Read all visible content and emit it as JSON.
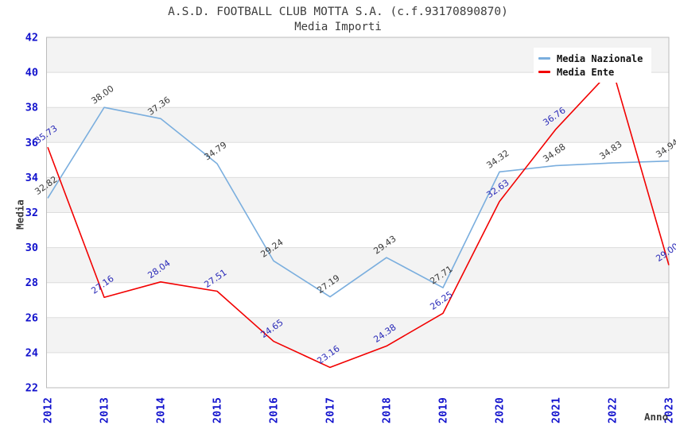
{
  "chart_data": {
    "type": "line",
    "title": "A.S.D. FOOTBALL CLUB MOTTA S.A. (c.f.93170890870)",
    "subtitle": "Media Importi",
    "xlabel": "Anno",
    "ylabel": "Media",
    "x": [
      "2012",
      "2013",
      "2014",
      "2015",
      "2016",
      "2017",
      "2018",
      "2019",
      "2020",
      "2021",
      "2022",
      "2023"
    ],
    "ylim": [
      22,
      42
    ],
    "yticks": [
      22,
      24,
      26,
      28,
      30,
      32,
      34,
      36,
      38,
      40,
      42
    ],
    "grid": true,
    "plot_bands_alternating": true,
    "legend_position": "top-right",
    "series": [
      {
        "name": "Media Nazionale",
        "color": "#7aaede",
        "label_color": "#3a3a3a",
        "values": [
          32.82,
          38.0,
          37.36,
          34.79,
          29.24,
          27.19,
          29.43,
          27.71,
          34.32,
          34.68,
          34.83,
          34.94
        ],
        "labels": [
          "32.82",
          "38.00",
          "37.36",
          "34.79",
          "29.24",
          "27.19",
          "29.43",
          "27.71",
          "34.32",
          "34.68",
          "34.83",
          "34.94"
        ]
      },
      {
        "name": "Media Ente",
        "color": "#f20000",
        "label_color": "#2a2ab8",
        "values": [
          35.73,
          27.16,
          28.04,
          27.51,
          24.65,
          23.16,
          24.38,
          26.25,
          32.63,
          36.76,
          40.2,
          29.0
        ],
        "labels": [
          "35.73",
          "27.16",
          "28.04",
          "27.51",
          "24.65",
          "23.16",
          "24.38",
          "26.25",
          "32.63",
          "36.76",
          "",
          "29.00"
        ]
      }
    ],
    "styles": {
      "band_fill": "#f3f3f3",
      "gridline": "#dddddd",
      "plot_border": "#bbbbbb",
      "tick_label_color": "#1212cd",
      "axis_title_color": "#3a3a3a",
      "title_color": "#3d3d3d",
      "legend_bg": "#ffffff"
    }
  }
}
